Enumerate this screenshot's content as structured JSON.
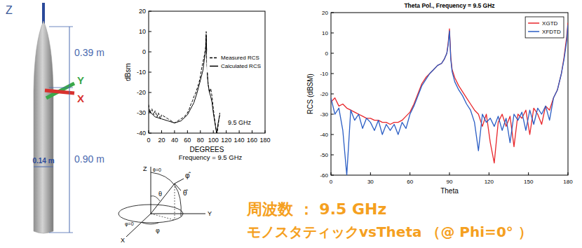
{
  "model": {
    "axis_labels": {
      "z": "Z",
      "y": "Y",
      "x": "X"
    },
    "dimensions": {
      "nose": "0.39 m",
      "body": "0.90 m",
      "diameter": "0.14 m"
    }
  },
  "chart_data": [
    {
      "type": "line",
      "subtitle": "Frequency = 9.5 GHz",
      "xlabel": "DEGREES",
      "ylabel": "dBsm",
      "annotations": [
        "9.5 GHz"
      ],
      "xlim": [
        0,
        180
      ],
      "ylim": [
        -40,
        20
      ],
      "xticks": [
        0,
        20,
        40,
        60,
        80,
        100,
        120,
        140,
        160,
        180
      ],
      "yticks": [
        -40,
        -30,
        -20,
        -10,
        0,
        10,
        20
      ],
      "grid": false,
      "legend": "right",
      "series": [
        {
          "name": "Measured RCS",
          "color": "#000000",
          "line_style": "dashed",
          "x": [
            0,
            2,
            5,
            8,
            10,
            13,
            15,
            18,
            20,
            25,
            30,
            35,
            40,
            45,
            50,
            55,
            60,
            63,
            65,
            68,
            70,
            73,
            75,
            78,
            80,
            82,
            84,
            86,
            88,
            89,
            90,
            91,
            92,
            94,
            96,
            98,
            100,
            102,
            104,
            106,
            108,
            110
          ],
          "values": [
            -26,
            -30,
            -28,
            -31,
            -29,
            -32,
            -30,
            -33,
            -31,
            -32,
            -33,
            -34,
            -35,
            -34,
            -33,
            -32,
            -30,
            -28,
            -26,
            -24,
            -22,
            -20,
            -18,
            -15,
            -12,
            -8,
            -5,
            -2,
            2,
            10,
            -5,
            -12,
            -16,
            -20,
            -18,
            -22,
            -28,
            -33,
            -38,
            -40,
            -35,
            -30
          ]
        },
        {
          "name": "Calculated RCS",
          "color": "#000000",
          "line_style": "solid",
          "x": [
            0,
            10,
            20,
            30,
            40,
            50,
            60,
            65,
            70,
            75,
            80,
            84,
            86,
            88,
            89,
            90,
            91,
            92,
            94,
            96,
            98,
            100,
            103,
            105,
            108,
            110
          ],
          "values": [
            -29,
            -32,
            -33,
            -34,
            -35,
            -34,
            -31,
            -28,
            -25,
            -20,
            -14,
            -9,
            -4,
            0,
            8,
            -4,
            -12,
            -16,
            -20,
            -22,
            -25,
            -30,
            -36,
            -40,
            -34,
            -31
          ]
        }
      ]
    },
    {
      "type": "line",
      "title": "Theta Pol., Frequency = 9.5 GHz",
      "xlabel": "Theta",
      "ylabel": "RCS (dBSM)",
      "xlim": [
        0,
        180
      ],
      "ylim": [
        -60,
        20
      ],
      "xticks": [
        0,
        30,
        60,
        90,
        120,
        150,
        180
      ],
      "yticks": [
        -60,
        -50,
        -40,
        -30,
        -20,
        -10,
        0,
        10,
        20
      ],
      "grid": false,
      "legend": "top-right",
      "x": [
        0,
        3,
        6,
        9,
        12,
        15,
        18,
        21,
        24,
        27,
        30,
        33,
        36,
        39,
        42,
        45,
        48,
        51,
        54,
        57,
        60,
        63,
        66,
        69,
        72,
        75,
        78,
        81,
        84,
        86,
        88,
        89,
        90,
        91,
        92,
        94,
        97,
        100,
        103,
        106,
        109,
        112,
        115,
        118,
        121,
        124,
        127,
        130,
        133,
        136,
        139,
        142,
        145,
        148,
        151,
        154,
        157,
        160,
        163,
        166,
        169,
        172,
        175,
        177,
        179,
        180
      ],
      "series": [
        {
          "name": "XGTD",
          "color": "#e8262b",
          "line_style": "solid",
          "values": [
            -24,
            -22,
            -26,
            -25,
            -27,
            -28,
            -29,
            -30,
            -31,
            -32,
            -32,
            -33,
            -33,
            -34,
            -34,
            -35,
            -34,
            -34,
            -33,
            -31,
            -29,
            -25,
            -20,
            -15,
            -12,
            -10,
            -8,
            -6,
            -5,
            -3,
            0,
            5,
            12,
            -2,
            -8,
            -12,
            -16,
            -19,
            -22,
            -25,
            -28,
            -30,
            -36,
            -30,
            -44,
            -54,
            -34,
            -30,
            -36,
            -31,
            -46,
            -30,
            -32,
            -28,
            -40,
            -27,
            -30,
            -35,
            -26,
            -28,
            -22,
            -18,
            -10,
            -2,
            8,
            15
          ]
        },
        {
          "name": "XFDTD",
          "color": "#2a5dc4",
          "line_style": "solid",
          "values": [
            -22,
            -30,
            -27,
            -38,
            -60,
            -28,
            -33,
            -30,
            -37,
            -32,
            -34,
            -38,
            -33,
            -40,
            -35,
            -38,
            -35,
            -40,
            -34,
            -37,
            -30,
            -26,
            -21,
            -16,
            -13,
            -10,
            -8,
            -6,
            -5,
            -3,
            0,
            4,
            11,
            -3,
            -9,
            -14,
            -18,
            -21,
            -25,
            -28,
            -34,
            -48,
            -30,
            -34,
            -32,
            -36,
            -31,
            -38,
            -32,
            -44,
            -30,
            -33,
            -29,
            -38,
            -28,
            -35,
            -27,
            -30,
            -26,
            -33,
            -22,
            -18,
            -10,
            -3,
            6,
            14
          ]
        }
      ]
    }
  ],
  "coordinate_diagram": {
    "labels": {
      "z": "Z",
      "theta0": "θ=0",
      "theta": "θ",
      "phi_hat": "φ̂",
      "theta_hat": "θ̂",
      "y": "Y",
      "x": "X",
      "phi0": "φ=0",
      "phi": "φ"
    }
  },
  "caption": {
    "lines": [
      "周波数 ： 9.5 GHz",
      "モノスタティックvsTheta （@ Phi=0° ）"
    ]
  }
}
